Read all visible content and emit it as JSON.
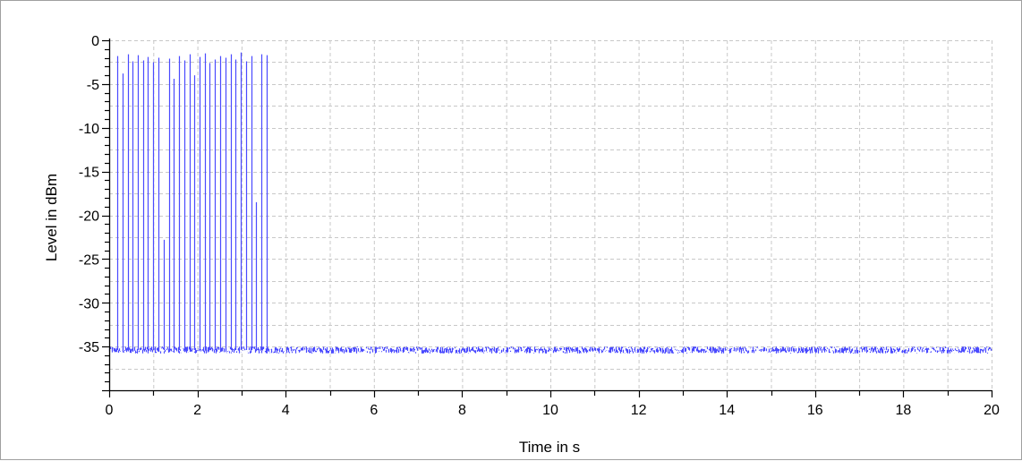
{
  "chart_data": {
    "type": "line",
    "title": "",
    "xlabel": "Time in s",
    "ylabel": "Level in dBm",
    "xlim": [
      0,
      20
    ],
    "ylim": [
      -40,
      0
    ],
    "xticks": [
      0,
      2,
      4,
      6,
      8,
      10,
      12,
      14,
      16,
      18,
      20
    ],
    "yticks": [
      0,
      -5,
      -10,
      -15,
      -20,
      -25,
      -30,
      -35
    ],
    "grid": true,
    "legend": "none",
    "colors": {
      "series": "#4a4aff",
      "grid": "#c8c8c8",
      "axis": "#000000"
    },
    "series": [
      {
        "noise_floor_dbm": -35.4,
        "noise_range_dbm": [
          -35.8,
          -35.0
        ],
        "pulses": {
          "t": [
            0.18,
            0.3,
            0.42,
            0.53,
            0.65,
            0.77,
            0.88,
            1.0,
            1.12,
            1.23,
            1.35,
            1.47,
            1.58,
            1.7,
            1.82,
            1.93,
            2.05,
            2.17,
            2.28,
            2.4,
            2.52,
            2.63,
            2.75,
            2.87,
            2.98,
            3.1,
            3.22,
            3.33,
            3.45,
            3.57
          ],
          "level_dbm": [
            -1.8,
            -3.8,
            -1.6,
            -2.4,
            -1.7,
            -2.3,
            -1.9,
            -2.5,
            -2.0,
            -22.8,
            -2.1,
            -4.4,
            -1.8,
            -2.3,
            -1.6,
            -4.0,
            -1.9,
            -1.5,
            -2.6,
            -2.2,
            -1.8,
            -2.0,
            -1.6,
            -2.2,
            -1.4,
            -2.4,
            -1.8,
            -18.5,
            -1.6,
            -1.7
          ]
        }
      }
    ]
  }
}
